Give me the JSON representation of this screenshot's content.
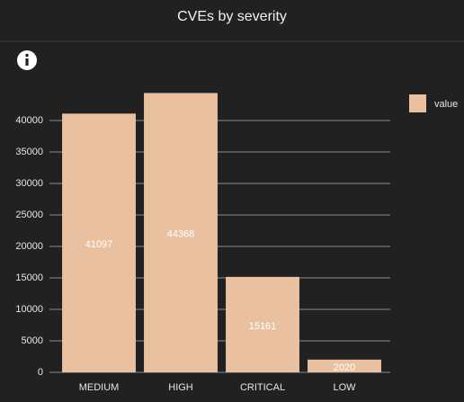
{
  "chart_data": {
    "type": "bar",
    "title": "CVEs by severity",
    "categories": [
      "MEDIUM",
      "HIGH",
      "CRITICAL",
      "LOW"
    ],
    "series": [
      {
        "name": "value",
        "color": "#e9c1a0",
        "values": [
          41097,
          44368,
          15161,
          2020
        ]
      }
    ],
    "ylim": [
      0,
      45000
    ],
    "yticks": [
      0,
      5000,
      10000,
      15000,
      20000,
      25000,
      30000,
      35000,
      40000
    ],
    "grid": true,
    "legend": "top-right",
    "data_labels": true
  }
}
